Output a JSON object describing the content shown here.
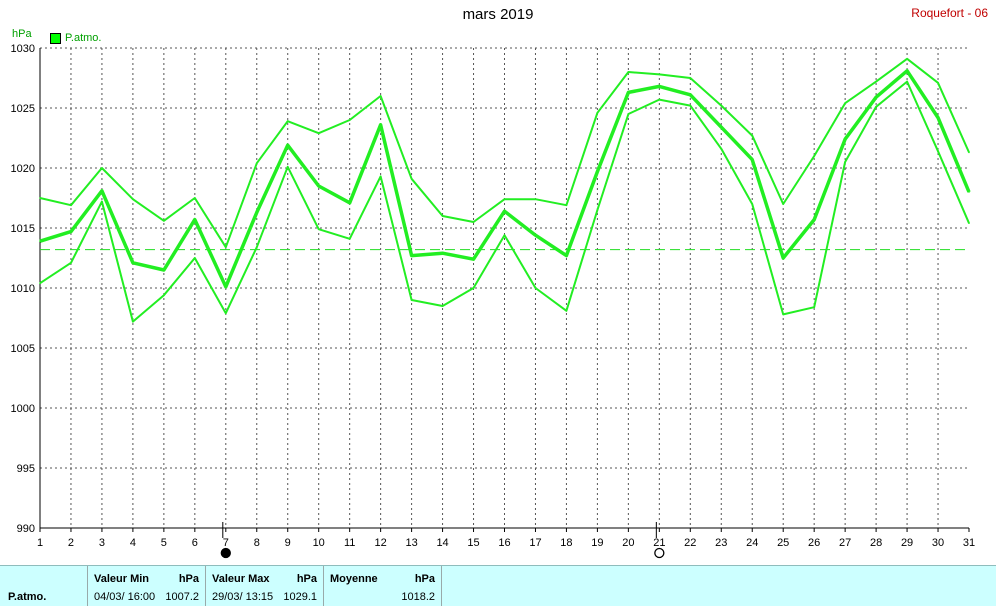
{
  "header": {
    "title": "mars 2019",
    "station": "Roquefort - 06"
  },
  "chart_data": {
    "type": "line",
    "title": "mars 2019",
    "ylabel": "hPa",
    "ylim": [
      990,
      1030
    ],
    "xlim": [
      1,
      31
    ],
    "y_ticks": [
      990,
      995,
      1000,
      1005,
      1010,
      1015,
      1020,
      1025,
      1030
    ],
    "x_ticks": [
      1,
      2,
      3,
      4,
      5,
      6,
      7,
      8,
      9,
      10,
      11,
      12,
      13,
      14,
      15,
      16,
      17,
      18,
      19,
      20,
      21,
      22,
      23,
      24,
      25,
      26,
      27,
      28,
      29,
      30,
      31
    ],
    "legend": [
      "P.atmo."
    ],
    "reference_line": 1013.2,
    "moon_phases": [
      {
        "day": 7,
        "phase": "new-moon"
      },
      {
        "day": 21,
        "phase": "full-moon"
      }
    ],
    "grid": true,
    "x": [
      1,
      2,
      3,
      4,
      5,
      6,
      7,
      8,
      9,
      10,
      11,
      12,
      13,
      14,
      15,
      16,
      17,
      18,
      19,
      20,
      21,
      22,
      23,
      24,
      25,
      26,
      27,
      28,
      29,
      30,
      31
    ],
    "series": [
      {
        "name": "P.atmo.",
        "role": "max",
        "values": [
          1017.5,
          1016.9,
          1020.0,
          1017.4,
          1015.6,
          1017.5,
          1013.4,
          1020.4,
          1023.9,
          1022.9,
          1024.0,
          1026.0,
          1019.1,
          1016.0,
          1015.5,
          1017.4,
          1017.4,
          1016.9,
          1024.6,
          1028.0,
          1027.8,
          1027.5,
          1025.2,
          1022.7,
          1017.0,
          1021.0,
          1025.4,
          1027.2,
          1029.1,
          1027.1,
          1021.3
        ]
      },
      {
        "name": "P.atmo.",
        "role": "mean",
        "values": [
          1013.9,
          1014.7,
          1018.1,
          1012.1,
          1011.5,
          1015.7,
          1010.1,
          1016.3,
          1021.9,
          1018.5,
          1017.1,
          1023.6,
          1012.7,
          1012.9,
          1012.4,
          1016.4,
          1014.4,
          1012.7,
          1019.7,
          1026.3,
          1026.8,
          1026.1,
          1023.4,
          1020.7,
          1012.5,
          1015.7,
          1022.4,
          1025.9,
          1028.1,
          1024.2,
          1018.0
        ]
      },
      {
        "name": "P.atmo.",
        "role": "min",
        "values": [
          1010.4,
          1012.1,
          1017.2,
          1007.2,
          1009.4,
          1012.5,
          1007.9,
          1013.4,
          1020.1,
          1014.9,
          1014.1,
          1019.3,
          1009.0,
          1008.5,
          1010.0,
          1014.4,
          1010.0,
          1008.1,
          1016.5,
          1024.5,
          1025.7,
          1025.2,
          1021.6,
          1017.0,
          1007.8,
          1008.4,
          1020.5,
          1025.1,
          1027.2,
          1021.4,
          1015.4
        ]
      }
    ]
  },
  "footer": {
    "row_label": "P.atmo.",
    "min_header": "Valeur Min",
    "max_header": "Valeur Max",
    "avg_header": "Moyenne",
    "unit": "hPa",
    "min_date": "04/03/  16:00",
    "min_value": "1007.2",
    "max_date": "29/03/  13:15",
    "max_value": "1029.1",
    "avg_value": "1018.2"
  }
}
